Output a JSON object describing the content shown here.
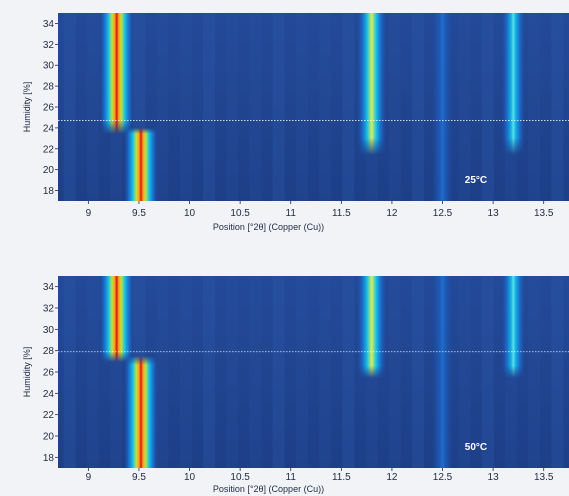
{
  "chart_data": [
    {
      "type": "heatmap",
      "xlabel": "Position [°2θ] (Copper (Cu))",
      "ylabel": "Humidity [%]",
      "xlim": [
        8.7,
        13.75
      ],
      "ylim": [
        17,
        35
      ],
      "x_ticks": [
        "9",
        "9.5",
        "10",
        "10.5",
        "11",
        "11.5",
        "12",
        "12.5",
        "13",
        "13.5"
      ],
      "y_ticks": [
        "18",
        "20",
        "22",
        "24",
        "26",
        "28",
        "30",
        "32",
        "34"
      ],
      "annotation": "25°C",
      "transition_humidity": 24.7,
      "peaks": [
        {
          "position": 9.28,
          "humidity_range": [
            24,
            35
          ],
          "intensity": 1.0
        },
        {
          "position": 9.52,
          "humidity_range": [
            17,
            24
          ],
          "intensity": 1.0
        },
        {
          "position": 11.8,
          "humidity_range": [
            22,
            35
          ],
          "intensity": 0.7
        },
        {
          "position": 12.5,
          "humidity_range": [
            17,
            35
          ],
          "intensity": 0.15
        },
        {
          "position": 13.2,
          "humidity_range": [
            22,
            35
          ],
          "intensity": 0.45
        }
      ]
    },
    {
      "type": "heatmap",
      "xlabel": "Position [°2θ] (Copper (Cu))",
      "ylabel": "Humidity [%]",
      "xlim": [
        8.7,
        13.75
      ],
      "ylim": [
        17,
        35
      ],
      "x_ticks": [
        "9",
        "9.5",
        "10",
        "10.5",
        "11",
        "11.5",
        "12",
        "12.5",
        "13",
        "13.5"
      ],
      "y_ticks": [
        "18",
        "20",
        "22",
        "24",
        "26",
        "28",
        "30",
        "32",
        "34"
      ],
      "annotation": "50°C",
      "transition_humidity": 27.9,
      "peaks": [
        {
          "position": 9.28,
          "humidity_range": [
            27.5,
            35
          ],
          "intensity": 1.0
        },
        {
          "position": 9.52,
          "humidity_range": [
            17,
            27.5
          ],
          "intensity": 1.0
        },
        {
          "position": 11.8,
          "humidity_range": [
            26,
            35
          ],
          "intensity": 0.6
        },
        {
          "position": 12.5,
          "humidity_range": [
            17,
            35
          ],
          "intensity": 0.12
        },
        {
          "position": 13.2,
          "humidity_range": [
            26,
            35
          ],
          "intensity": 0.45
        }
      ]
    }
  ]
}
